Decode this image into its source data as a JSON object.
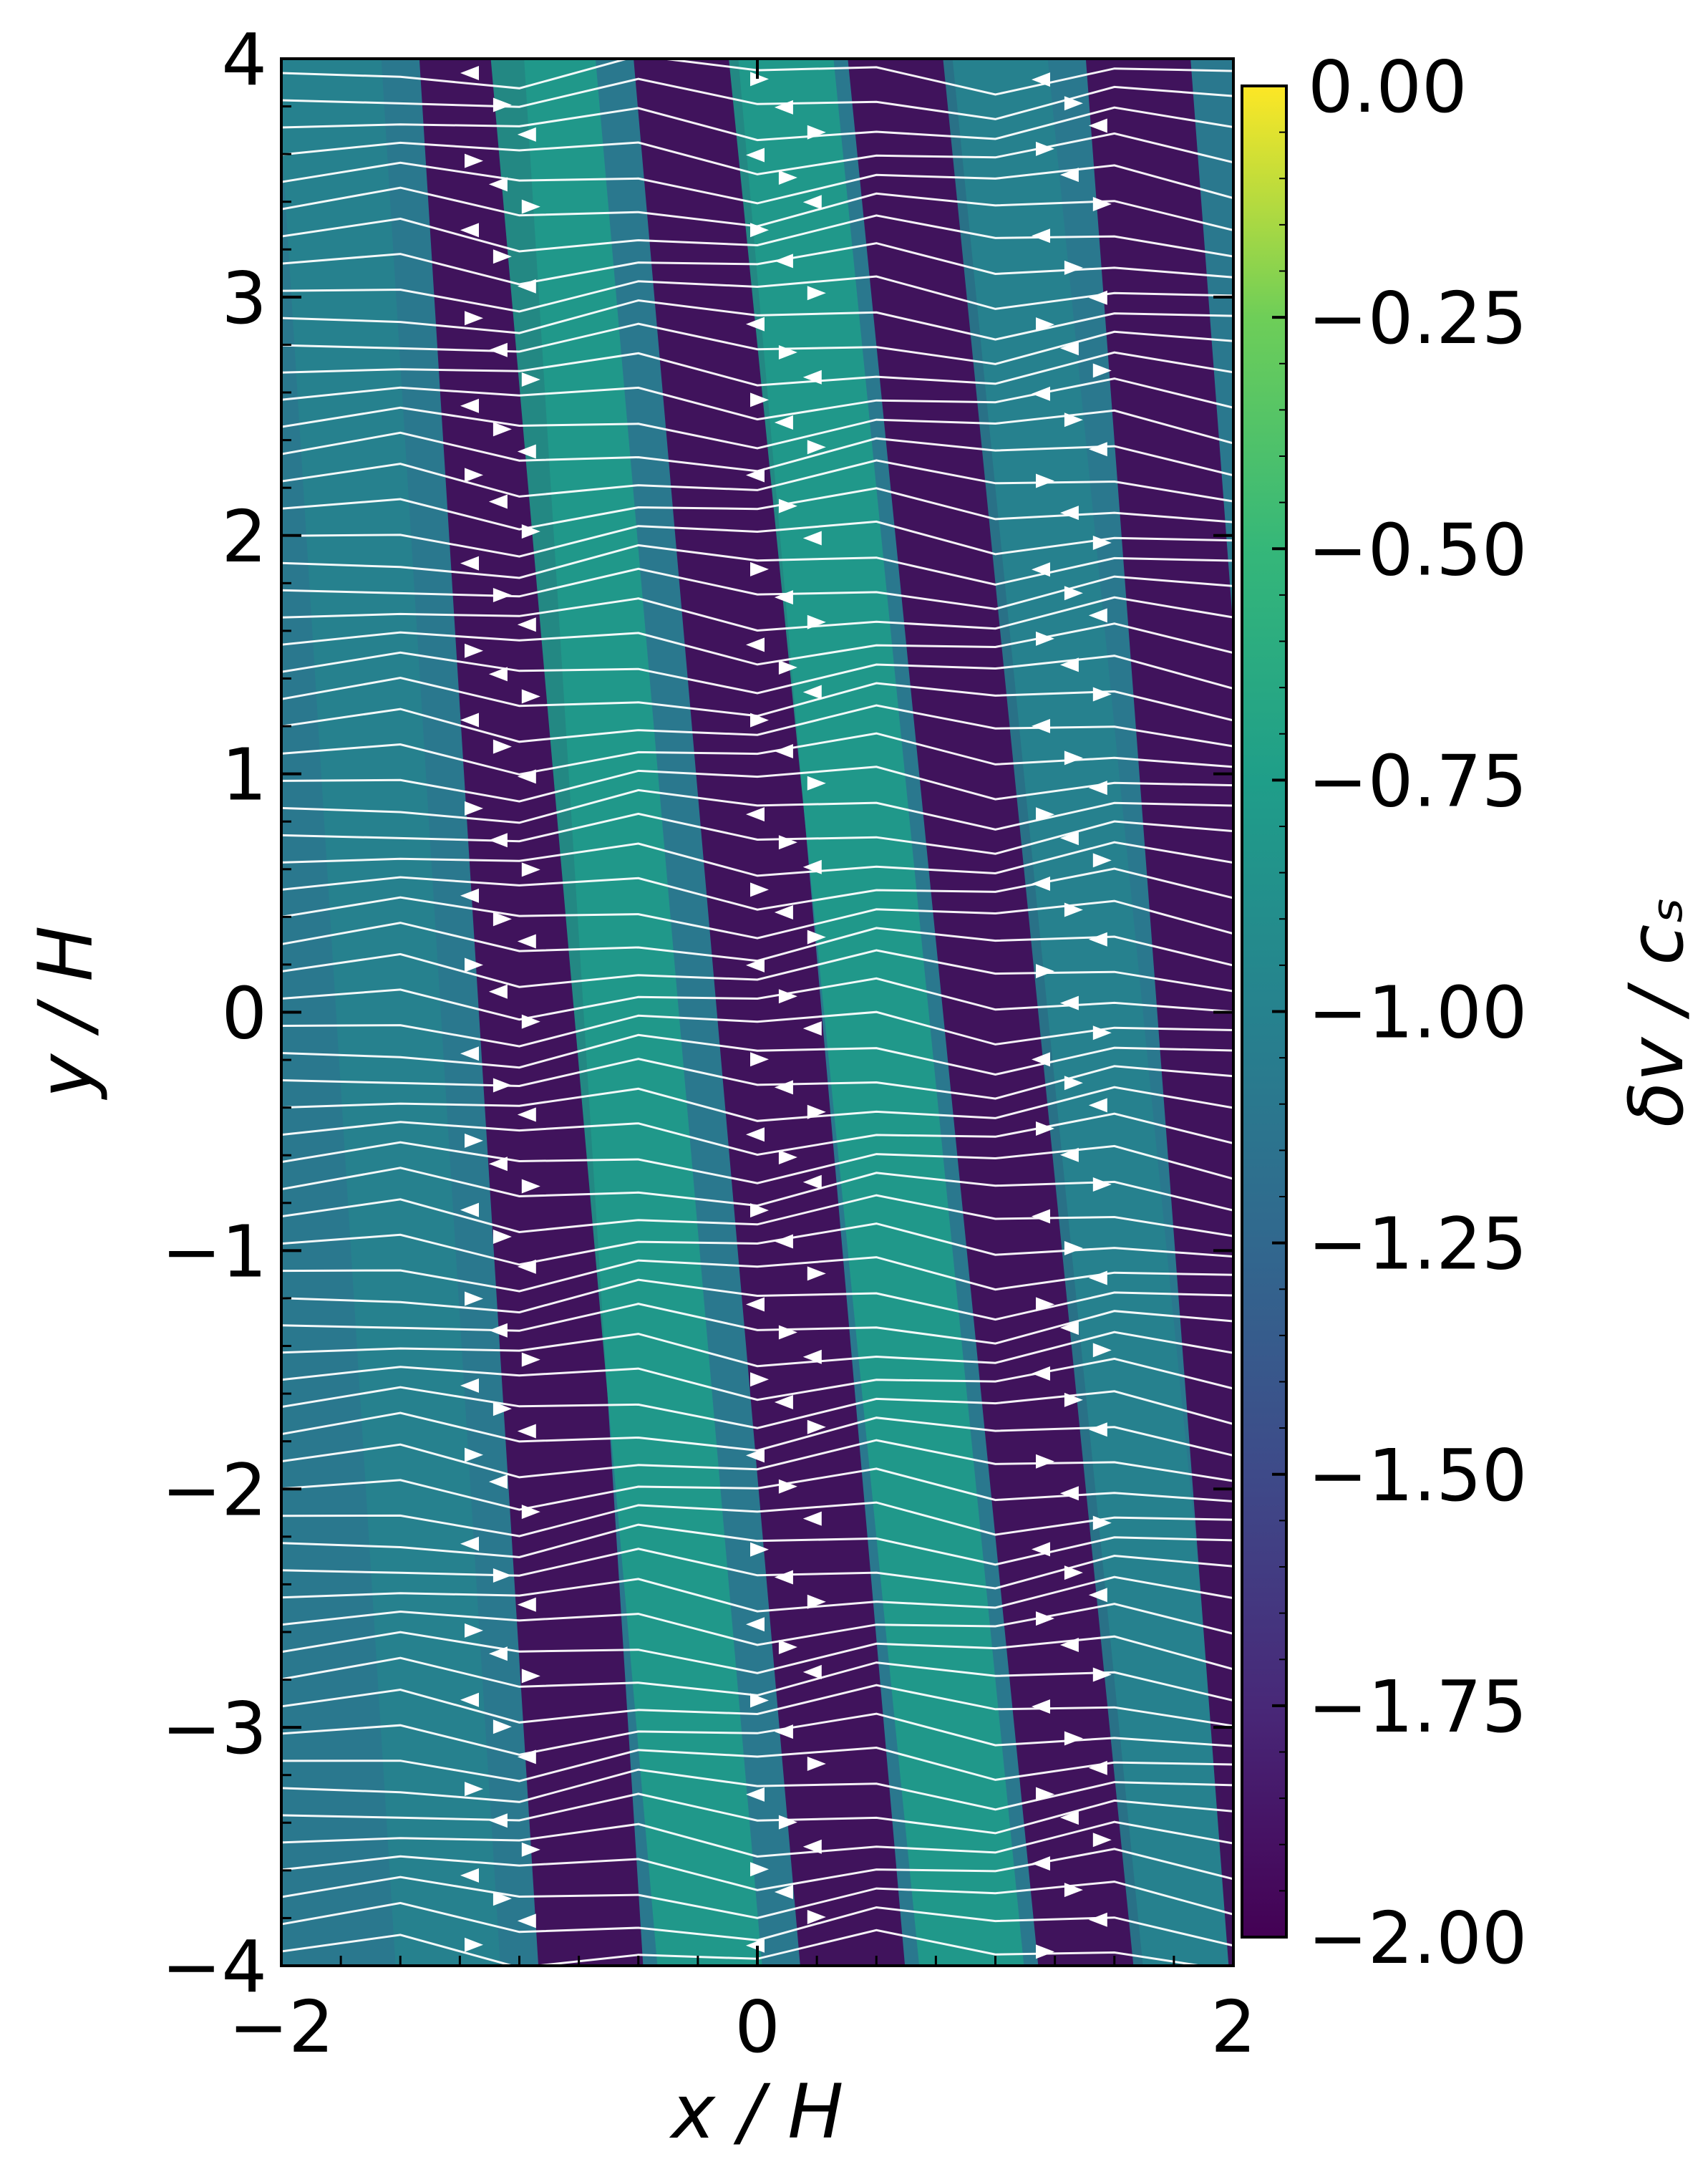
{
  "chart_data": {
    "type": "heatmap",
    "title": "",
    "xlabel": "x / H",
    "ylabel": "y / H",
    "xlim": [
      -2,
      2
    ],
    "ylim": [
      -4,
      4
    ],
    "x_ticks": [
      -2,
      0,
      2
    ],
    "x_tick_labels": [
      "−2",
      "0",
      "2"
    ],
    "y_ticks": [
      -4,
      -3,
      -2,
      -1,
      0,
      1,
      2,
      3,
      4
    ],
    "y_tick_labels": [
      "−4",
      "−3",
      "−2",
      "−1",
      "0",
      "1",
      "2",
      "3",
      "4"
    ],
    "colorbar": {
      "label": "δv / cₛ",
      "range": [
        -2.0,
        0.0
      ],
      "colormap": "viridis",
      "ticks": [
        0.0,
        -0.25,
        -0.5,
        -0.75,
        -1.0,
        -1.25,
        -1.5,
        -1.75,
        -2.0
      ],
      "tick_labels": [
        "0.00",
        "−0.25",
        "−0.50",
        "−0.75",
        "−1.00",
        "−1.25",
        "−1.50",
        "−1.75",
        "−2.00"
      ]
    },
    "overlay": "white streamlines with arrowheads",
    "bands": [
      {
        "x_at_y_top": -1.8,
        "x_at_y_bottom": -1.3,
        "value": -1.0
      },
      {
        "x_at_y_top": -1.2,
        "x_at_y_bottom": -0.7,
        "value": -1.9
      },
      {
        "x_at_y_top": -0.9,
        "x_at_y_bottom": -0.2,
        "value": -0.7
      },
      {
        "x_at_y_top": -0.3,
        "x_at_y_bottom": 0.4,
        "value": -1.9
      },
      {
        "x_at_y_top": 0.1,
        "x_at_y_bottom": 0.9,
        "value": -0.7
      },
      {
        "x_at_y_top": 0.6,
        "x_at_y_bottom": 1.4,
        "value": -1.9
      },
      {
        "x_at_y_top": 1.0,
        "x_at_y_bottom": 1.8,
        "value": -0.9
      },
      {
        "x_at_y_top": 1.6,
        "x_at_y_bottom": 2.2,
        "value": -1.9
      }
    ],
    "grid": false,
    "legend": "none"
  }
}
